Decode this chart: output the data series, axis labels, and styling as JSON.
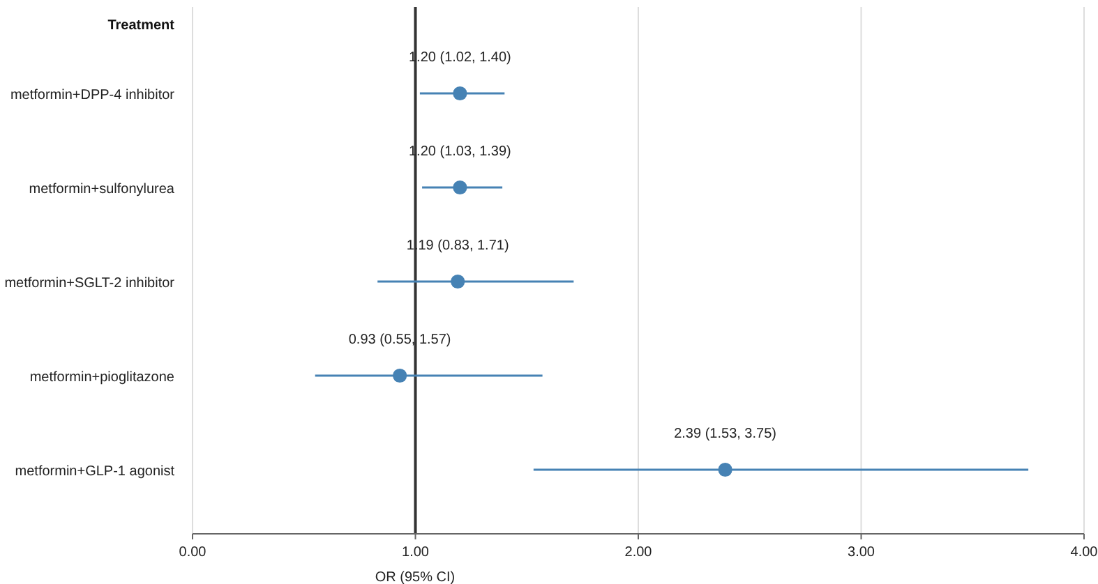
{
  "chart_data": {
    "type": "scatter",
    "orientation": "horizontal",
    "ylabel": "Treatment",
    "xlabel": "OR (95% CI)",
    "categories": [
      "metformin+DPP-4 inhibitor",
      "metformin+sulfonylurea",
      "metformin+SGLT-2 inhibitor",
      "metformin+pioglitazone",
      "metformin+GLP-1 agonist"
    ],
    "color": "#4682b4",
    "values": [
      1.2,
      1.2,
      1.19,
      0.93,
      2.39
    ],
    "errors": [
      [
        1.02,
        1.4
      ],
      [
        1.03,
        1.39
      ],
      [
        0.83,
        1.71
      ],
      [
        0.55,
        1.57
      ],
      [
        1.53,
        3.75
      ]
    ],
    "value_labels": [
      "1.20 (1.02, 1.40)",
      "1.20 (1.03, 1.39)",
      "1.19 (0.83, 1.71)",
      "0.93 (0.55, 1.57)",
      "2.39 (1.53, 3.75)"
    ],
    "xlim": [
      0,
      4
    ],
    "xticks": [
      {
        "value": 0,
        "label": "0.00"
      },
      {
        "value": 1,
        "label": "1.00"
      },
      {
        "value": 2,
        "label": "2.00"
      },
      {
        "value": 3,
        "label": "3.00"
      },
      {
        "value": 4,
        "label": "4.00"
      }
    ],
    "ref_lines": [
      {
        "axis": "x",
        "value": 1,
        "color": "#333333"
      }
    ],
    "grid": "x",
    "marker": "circle"
  }
}
